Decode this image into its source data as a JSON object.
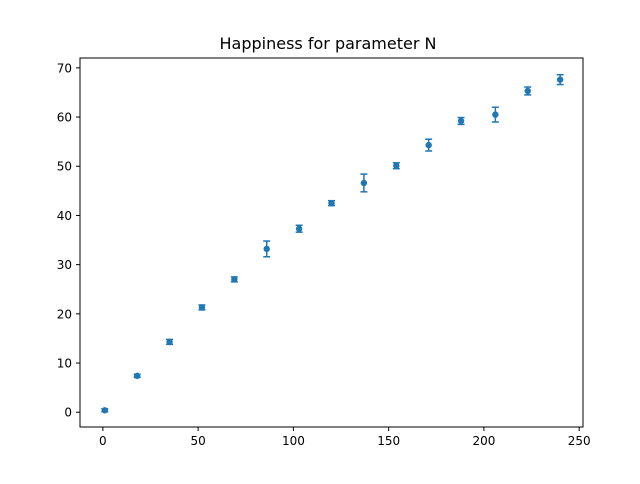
{
  "chart_data": {
    "type": "scatter",
    "title": "Happiness for parameter N",
    "xlabel": "",
    "ylabel": "",
    "xlim": [
      -12,
      252
    ],
    "ylim": [
      -3,
      72
    ],
    "grid": false,
    "x_ticks": [
      0,
      50,
      100,
      150,
      200,
      250
    ],
    "y_ticks": [
      0,
      10,
      20,
      30,
      40,
      50,
      60,
      70
    ],
    "x_tick_labels": [
      "0",
      "50",
      "100",
      "150",
      "200",
      "250"
    ],
    "y_tick_labels": [
      "0",
      "10",
      "20",
      "30",
      "40",
      "50",
      "60",
      "70"
    ],
    "marker_color": "#1f77b4",
    "series": [
      {
        "x": [
          1,
          18,
          35,
          52,
          69,
          86,
          103,
          120,
          137,
          154,
          171,
          188,
          206,
          223,
          240
        ],
        "y": [
          0.4,
          7.4,
          14.3,
          21.3,
          27.0,
          33.2,
          37.3,
          42.5,
          46.6,
          50.1,
          54.3,
          59.2,
          60.5,
          65.3,
          67.6
        ],
        "err": [
          0.3,
          0.3,
          0.5,
          0.5,
          0.5,
          1.6,
          0.7,
          0.5,
          1.8,
          0.6,
          1.2,
          0.7,
          1.5,
          0.8,
          1.0
        ]
      }
    ]
  }
}
